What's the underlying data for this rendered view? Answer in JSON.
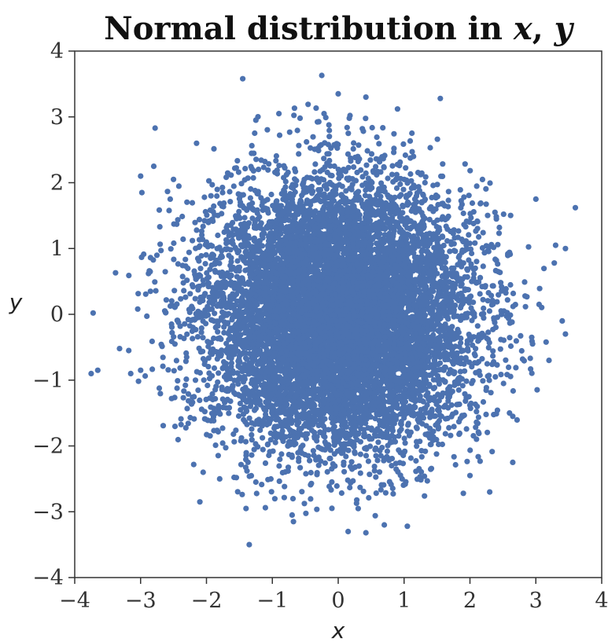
{
  "chart_data": {
    "type": "scatter",
    "title": "Normal distribution in x, y",
    "title_parts": [
      {
        "text": "Normal distribution in ",
        "italic": false
      },
      {
        "text": "x",
        "italic": true
      },
      {
        "text": ", ",
        "italic": false
      },
      {
        "text": "y",
        "italic": true
      }
    ],
    "xlabel": "x",
    "ylabel": "y",
    "xlim": [
      -4,
      4
    ],
    "ylim": [
      -4,
      4
    ],
    "xticks": [
      -4,
      -3,
      -2,
      -1,
      0,
      1,
      2,
      3,
      4
    ],
    "yticks": [
      -4,
      -3,
      -2,
      -1,
      0,
      1,
      2,
      3,
      4
    ],
    "xtick_labels": [
      "−4",
      "−3",
      "−2",
      "−1",
      "0",
      "1",
      "2",
      "3",
      "4"
    ],
    "ytick_labels": [
      "−4",
      "−3",
      "−2",
      "−1",
      "0",
      "1",
      "2",
      "3",
      "4"
    ],
    "grid": false,
    "legend": "none",
    "point_color": "#4c72b0",
    "distribution": {
      "mean": [
        0,
        0
      ],
      "std": [
        1,
        1
      ],
      "approx_count": 10000
    },
    "outliers": [
      [
        -3.72,
        0.02
      ],
      [
        -3.75,
        -0.9
      ],
      [
        -3.65,
        -0.85
      ],
      [
        -3.38,
        0.63
      ],
      [
        -3.32,
        -0.52
      ],
      [
        -3.18,
        -0.55
      ],
      [
        -3.15,
        -0.9
      ],
      [
        -3.0,
        -0.85
      ],
      [
        -3.0,
        2.1
      ],
      [
        -2.98,
        1.85
      ],
      [
        -2.78,
        2.83
      ],
      [
        -2.8,
        2.25
      ],
      [
        -2.85,
        0.35
      ],
      [
        -2.88,
        0.62
      ],
      [
        -2.55,
        1.75
      ],
      [
        -2.5,
        2.05
      ],
      [
        -2.15,
        2.6
      ],
      [
        -2.05,
        -2.4
      ],
      [
        -2.1,
        -2.85
      ],
      [
        -1.8,
        -2.5
      ],
      [
        -1.45,
        3.58
      ],
      [
        -1.4,
        -2.95
      ],
      [
        -1.35,
        -3.5
      ],
      [
        -1.25,
        2.95
      ],
      [
        -0.9,
        3.05
      ],
      [
        -0.7,
        -3.05
      ],
      [
        -0.68,
        -3.15
      ],
      [
        -0.25,
        3.63
      ],
      [
        0.0,
        3.35
      ],
      [
        0.15,
        -3.3
      ],
      [
        0.42,
        3.3
      ],
      [
        0.42,
        -3.32
      ],
      [
        0.7,
        -3.2
      ],
      [
        0.9,
        3.12
      ],
      [
        1.05,
        -3.22
      ],
      [
        1.55,
        3.28
      ],
      [
        1.9,
        -2.72
      ],
      [
        2.0,
        -2.45
      ],
      [
        2.3,
        -2.7
      ],
      [
        2.65,
        -2.25
      ],
      [
        2.6,
        -1.5
      ],
      [
        2.65,
        -1.55
      ],
      [
        2.95,
        -0.45
      ],
      [
        3.0,
        1.75
      ],
      [
        3.05,
        0.15
      ],
      [
        3.2,
        -0.7
      ],
      [
        3.28,
        0.78
      ],
      [
        3.3,
        1.05
      ],
      [
        3.45,
        1.0
      ],
      [
        3.6,
        1.62
      ],
      [
        3.4,
        -0.1
      ],
      [
        3.45,
        -0.3
      ]
    ]
  }
}
